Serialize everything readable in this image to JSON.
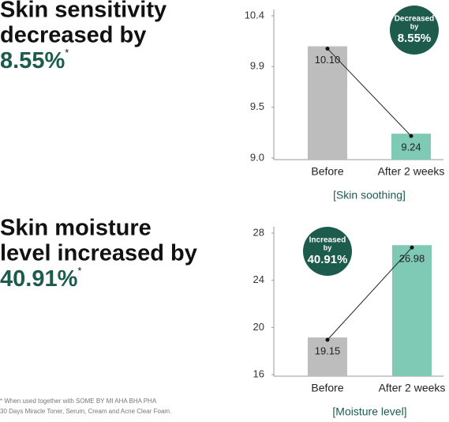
{
  "headlines": [
    {
      "lines": [
        "Skin sensitivity",
        "decreased by"
      ],
      "highlight": "8.55%",
      "mark": "*"
    },
    {
      "lines": [
        "Skin moisture",
        "level increased by"
      ],
      "highlight": "40.91%",
      "mark": "*"
    }
  ],
  "footnote": [
    "* When used together with SOME BY MI AHA BHA PHA",
    "30 Days Miracle Toner, Serum, Cream and Acne Clear Foam."
  ],
  "chart_data": [
    {
      "type": "bar",
      "categories": [
        "Before",
        "After 2 weeks"
      ],
      "values": [
        10.1,
        9.24
      ],
      "value_labels": [
        "10.10",
        "9.24"
      ],
      "colors": [
        "#bdbdbd",
        "#7fcab5"
      ],
      "ylim": [
        9,
        10.4
      ],
      "yticks": [
        10.4,
        9.9,
        9.5,
        {
          "value": 9,
          "label": "9.0"
        }
      ],
      "xlabel": "[Skin soothing]",
      "badge": [
        "Decreased",
        "by",
        "8.55%"
      ]
    },
    {
      "type": "bar",
      "categories": [
        "Before",
        "After 2 weeks"
      ],
      "values": [
        19.15,
        26.98
      ],
      "colors": [
        "#bdbdbd",
        "#7fcab5"
      ],
      "ylim": [
        16,
        28
      ],
      "yticks": [
        28,
        24,
        20,
        16
      ],
      "xlabel": "[Moisture level]",
      "badge": [
        "Increased",
        "by",
        "40.91%"
      ]
    }
  ]
}
